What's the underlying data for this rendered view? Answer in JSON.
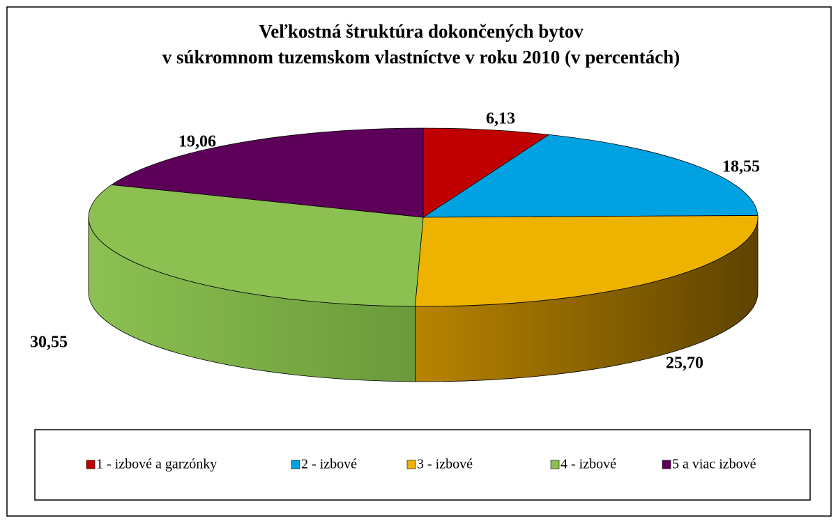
{
  "chart_data": {
    "type": "pie3d",
    "title": [
      "Veľkostná štruktúra dokončených bytov",
      "v súkromnom tuzemskom vlastníctve v roku 2010 (v percentách)"
    ],
    "categories": [
      "1 - izbové a garzónky",
      "2 - izbové",
      "3 - izbové",
      "4 - izbové",
      "5 a viac izbové"
    ],
    "values": [
      6.13,
      18.55,
      25.7,
      30.55,
      19.06
    ],
    "value_labels": [
      "6,13",
      "18,55",
      "25,70",
      "30,55",
      "19,06"
    ],
    "colors": [
      "#c00000",
      "#00a2e2",
      "#eeb200",
      "#8cc152",
      "#5c0059"
    ],
    "legend": "bottom"
  }
}
